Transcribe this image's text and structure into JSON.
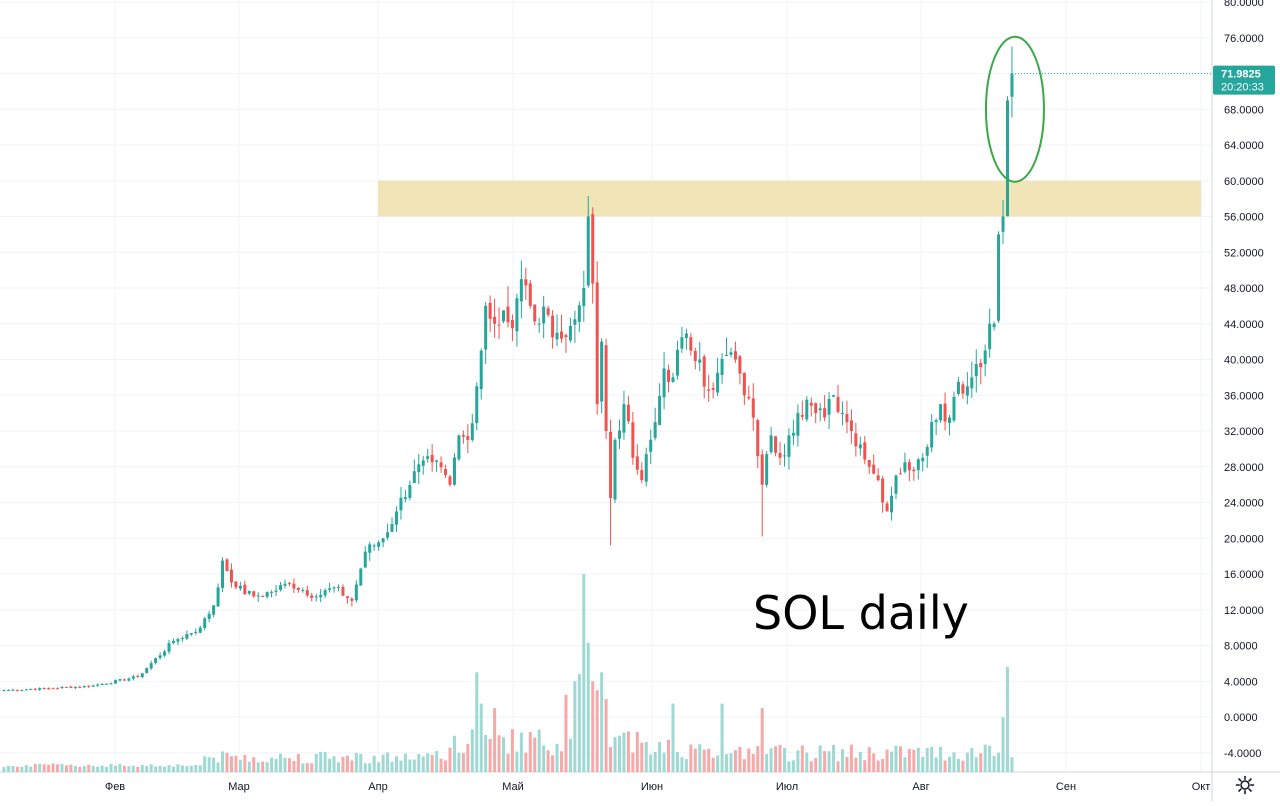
{
  "chart_data": {
    "type": "candlestick",
    "title": "",
    "annotation": "SOL daily",
    "colors": {
      "up": "#26a69a",
      "down": "#ef5350",
      "volume_up": "#9ed9d3",
      "volume_down": "#f5a9a9",
      "zone": "#f0e2b0",
      "circle": "#39a845",
      "last_price_bg": "#26a69a"
    },
    "y_axis": {
      "min": -6,
      "max": 80,
      "ticks": [
        "80.0000",
        "76.0000",
        "72.0000",
        "68.0000",
        "64.0000",
        "60.0000",
        "56.0000",
        "52.0000",
        "48.0000",
        "44.0000",
        "40.0000",
        "36.0000",
        "32.0000",
        "28.0000",
        "24.0000",
        "20.0000",
        "16.0000",
        "12.0000",
        "8.0000",
        "4.0000",
        "0.0000",
        "-4.0000"
      ],
      "scale": "linear",
      "grid": true
    },
    "x_axis": {
      "months": [
        "Фев",
        "Мар",
        "Апр",
        "Май",
        "Июн",
        "Июл",
        "Авг",
        "Сен",
        "Окт"
      ]
    },
    "resistance_zone": {
      "from": 56,
      "to": 60
    },
    "last_price": {
      "value": "71.9825",
      "countdown": "20:20:33"
    },
    "highlight": {
      "type": "ellipse",
      "around": "last candles",
      "price_range": [
        61,
        75
      ]
    },
    "anchors": [
      {
        "d": 0,
        "c": 3.0
      },
      {
        "d": 10,
        "c": 3.2
      },
      {
        "d": 20,
        "c": 3.5
      },
      {
        "d": 30,
        "c": 4.5
      },
      {
        "d": 38,
        "c": 8.5
      },
      {
        "d": 44,
        "c": 10.0
      },
      {
        "d": 47,
        "c": 12.5
      },
      {
        "d": 48,
        "c": 14.5
      },
      {
        "d": 49,
        "c": 17.5
      },
      {
        "d": 52,
        "c": 14.5
      },
      {
        "d": 56,
        "c": 13.5
      },
      {
        "d": 60,
        "c": 14.0
      },
      {
        "d": 64,
        "c": 15.0
      },
      {
        "d": 70,
        "c": 13.5
      },
      {
        "d": 74,
        "c": 14.5
      },
      {
        "d": 78,
        "c": 13.0
      },
      {
        "d": 81,
        "c": 18.5
      },
      {
        "d": 85,
        "c": 20.0
      },
      {
        "d": 88,
        "c": 23.0
      },
      {
        "d": 92,
        "c": 27.5
      },
      {
        "d": 96,
        "c": 28.5
      },
      {
        "d": 100,
        "c": 26.0
      },
      {
        "d": 102,
        "c": 31.5
      },
      {
        "d": 104,
        "c": 31.0
      },
      {
        "d": 106,
        "c": 37.0
      },
      {
        "d": 108,
        "c": 46.0
      },
      {
        "d": 110,
        "c": 44.0
      },
      {
        "d": 112,
        "c": 45.5
      },
      {
        "d": 114,
        "c": 43.5
      },
      {
        "d": 116,
        "c": 49.0
      },
      {
        "d": 118,
        "c": 46.0
      },
      {
        "d": 120,
        "c": 44.0
      },
      {
        "d": 122,
        "c": 45.0
      },
      {
        "d": 124,
        "c": 43.0
      },
      {
        "d": 126,
        "c": 42.5
      },
      {
        "d": 128,
        "c": 44.5
      },
      {
        "d": 130,
        "c": 48.0
      },
      {
        "d": 131,
        "c": 56.0
      },
      {
        "d": 132,
        "c": 48.5
      },
      {
        "d": 133,
        "c": 35.0
      },
      {
        "d": 134,
        "c": 42.0
      },
      {
        "d": 135,
        "c": 32.0
      },
      {
        "d": 136,
        "c": 24.5
      },
      {
        "d": 137,
        "c": 31.0
      },
      {
        "d": 139,
        "c": 35.0
      },
      {
        "d": 141,
        "c": 29.0
      },
      {
        "d": 143,
        "c": 26.5
      },
      {
        "d": 146,
        "c": 33.0
      },
      {
        "d": 148,
        "c": 39.0
      },
      {
        "d": 150,
        "c": 38.0
      },
      {
        "d": 152,
        "c": 42.5
      },
      {
        "d": 154,
        "c": 41.0
      },
      {
        "d": 156,
        "c": 40.0
      },
      {
        "d": 158,
        "c": 36.5
      },
      {
        "d": 160,
        "c": 38.5
      },
      {
        "d": 162,
        "c": 40.5
      },
      {
        "d": 164,
        "c": 40.0
      },
      {
        "d": 166,
        "c": 36.0
      },
      {
        "d": 168,
        "c": 33.5
      },
      {
        "d": 170,
        "c": 26.0
      },
      {
        "d": 172,
        "c": 31.5
      },
      {
        "d": 174,
        "c": 29.0
      },
      {
        "d": 176,
        "c": 31.5
      },
      {
        "d": 178,
        "c": 34.0
      },
      {
        "d": 180,
        "c": 35.5
      },
      {
        "d": 182,
        "c": 34.0
      },
      {
        "d": 184,
        "c": 33.5
      },
      {
        "d": 186,
        "c": 36.0
      },
      {
        "d": 188,
        "c": 34.0
      },
      {
        "d": 190,
        "c": 32.0
      },
      {
        "d": 192,
        "c": 30.5
      },
      {
        "d": 194,
        "c": 28.0
      },
      {
        "d": 196,
        "c": 26.5
      },
      {
        "d": 198,
        "c": 23.0
      },
      {
        "d": 200,
        "c": 27.0
      },
      {
        "d": 202,
        "c": 28.5
      },
      {
        "d": 204,
        "c": 27.5
      },
      {
        "d": 206,
        "c": 29.0
      },
      {
        "d": 208,
        "c": 33.0
      },
      {
        "d": 210,
        "c": 35.0
      },
      {
        "d": 212,
        "c": 33.5
      },
      {
        "d": 214,
        "c": 37.5
      },
      {
        "d": 216,
        "c": 37.0
      },
      {
        "d": 218,
        "c": 39.5
      },
      {
        "d": 220,
        "c": 41.0
      },
      {
        "d": 221,
        "c": 44.0
      },
      {
        "d": 222,
        "c": 44.0
      },
      {
        "d": 223,
        "c": 54.0
      },
      {
        "d": 224,
        "c": 56.0
      },
      {
        "d": 225,
        "c": 69.0
      },
      {
        "d": 226,
        "c": 71.98
      }
    ],
    "volume_spikes": [
      {
        "d": 106,
        "v": 5.0
      },
      {
        "d": 107,
        "v": 1.5
      },
      {
        "d": 110,
        "v": 1.0
      },
      {
        "d": 126,
        "v": 2.5
      },
      {
        "d": 128,
        "v": 4.0
      },
      {
        "d": 129,
        "v": 4.8
      },
      {
        "d": 130,
        "v": 16.0
      },
      {
        "d": 131,
        "v": 8.3
      },
      {
        "d": 132,
        "v": 4.0
      },
      {
        "d": 133,
        "v": 3.0
      },
      {
        "d": 134,
        "v": 5.0
      },
      {
        "d": 135,
        "v": 2.0
      },
      {
        "d": 150,
        "v": 1.5
      },
      {
        "d": 161,
        "v": 1.5
      },
      {
        "d": 170,
        "v": 1.0
      },
      {
        "d": 224,
        "v": 0.0
      },
      {
        "d": 225,
        "v": 5.6
      }
    ]
  }
}
